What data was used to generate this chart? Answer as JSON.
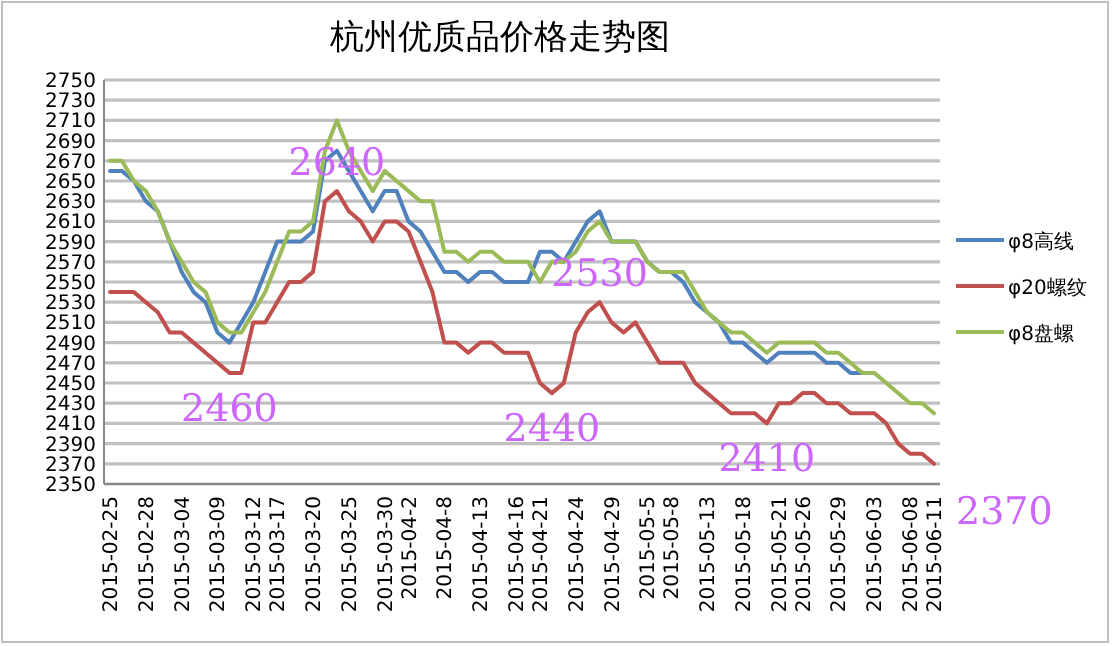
{
  "chart_data": {
    "type": "line",
    "title": "杭州优质品价格走势图",
    "categories": [
      "2015-02-25",
      null,
      null,
      "2015-02-28",
      null,
      null,
      "2015-03-04",
      null,
      null,
      "2015-03-09",
      null,
      null,
      "2015-03-12",
      null,
      "2015-03-17",
      null,
      null,
      "2015-03-20",
      null,
      null,
      "2015-03-25",
      null,
      null,
      "2015-03-30",
      null,
      "2015-04-2",
      null,
      null,
      "2015-04-8",
      null,
      null,
      "2015-04-13",
      null,
      null,
      "2015-04-16",
      null,
      "2015-04-21",
      null,
      null,
      "2015-04-24",
      null,
      null,
      "2015-04-29",
      null,
      null,
      "2015-05-5",
      null,
      "2015-05-8",
      null,
      null,
      "2015-05-13",
      null,
      null,
      "2015-05-18",
      null,
      null,
      "2015-05-21",
      null,
      "2015-05-26",
      null,
      null,
      "2015-05-29",
      null,
      null,
      "2015-06-03",
      null,
      null,
      "2015-06-08",
      null,
      "2015-06-11"
    ],
    "series": [
      {
        "name": "φ8高线",
        "color": "#4f81bd",
        "values": [
          2660,
          2660,
          2650,
          2630,
          2620,
          2590,
          2560,
          2540,
          2530,
          2500,
          2490,
          2510,
          2530,
          2560,
          2590,
          2590,
          2590,
          2600,
          2670,
          2680,
          2660,
          2640,
          2620,
          2640,
          2640,
          2610,
          2600,
          2580,
          2560,
          2560,
          2550,
          2560,
          2560,
          2550,
          2550,
          2550,
          2580,
          2580,
          2570,
          2590,
          2610,
          2620,
          2590,
          2590,
          2590,
          2570,
          2560,
          2560,
          2550,
          2530,
          2520,
          2510,
          2490,
          2490,
          2480,
          2470,
          2480,
          2480,
          2480,
          2480,
          2470,
          2470,
          2460,
          2460,
          null,
          null,
          null,
          null,
          null,
          null
        ]
      },
      {
        "name": "φ20螺纹",
        "color": "#c0504d",
        "values": [
          2540,
          2540,
          2540,
          2530,
          2520,
          2500,
          2500,
          2490,
          2480,
          2470,
          2460,
          2460,
          2510,
          2510,
          2530,
          2550,
          2550,
          2560,
          2630,
          2640,
          2620,
          2610,
          2590,
          2610,
          2610,
          2600,
          2570,
          2540,
          2490,
          2490,
          2480,
          2490,
          2490,
          2480,
          2480,
          2480,
          2450,
          2440,
          2450,
          2500,
          2520,
          2530,
          2510,
          2500,
          2510,
          2490,
          2470,
          2470,
          2470,
          2450,
          2440,
          2430,
          2420,
          2420,
          2420,
          2410,
          2430,
          2430,
          2440,
          2440,
          2430,
          2430,
          2420,
          2420,
          2420,
          2410,
          2390,
          2380,
          2380,
          2370
        ]
      },
      {
        "name": "φ8盘螺",
        "color": "#9bbb59",
        "values": [
          2670,
          2670,
          2650,
          2640,
          2620,
          2590,
          2570,
          2550,
          2540,
          2510,
          2500,
          2500,
          2520,
          2540,
          2570,
          2600,
          2600,
          2610,
          2680,
          2710,
          2680,
          2660,
          2640,
          2660,
          2650,
          2640,
          2630,
          2630,
          2580,
          2580,
          2570,
          2580,
          2580,
          2570,
          2570,
          2570,
          2550,
          2570,
          2570,
          2580,
          2600,
          2610,
          2590,
          2590,
          2590,
          2570,
          2560,
          2560,
          2560,
          2540,
          2520,
          2510,
          2500,
          2500,
          2490,
          2480,
          2490,
          2490,
          2490,
          2490,
          2480,
          2480,
          2470,
          2460,
          2460,
          2450,
          2440,
          2430,
          2430,
          2420
        ]
      }
    ],
    "ylim": [
      2350,
      2750
    ],
    "yticks": [
      2350,
      2370,
      2390,
      2410,
      2430,
      2450,
      2470,
      2490,
      2510,
      2530,
      2550,
      2570,
      2590,
      2610,
      2630,
      2650,
      2670,
      2690,
      2710,
      2730,
      2750
    ],
    "grid": "y",
    "legend": "right",
    "marker": "none",
    "line_style": "solid",
    "annotations": [
      {
        "text": "2460",
        "y": 2460
      },
      {
        "text": "2640",
        "y": 2640
      },
      {
        "text": "2440",
        "y": 2440
      },
      {
        "text": "2530",
        "y": 2530
      },
      {
        "text": "2410",
        "y": 2410
      },
      "2370"
    ]
  }
}
